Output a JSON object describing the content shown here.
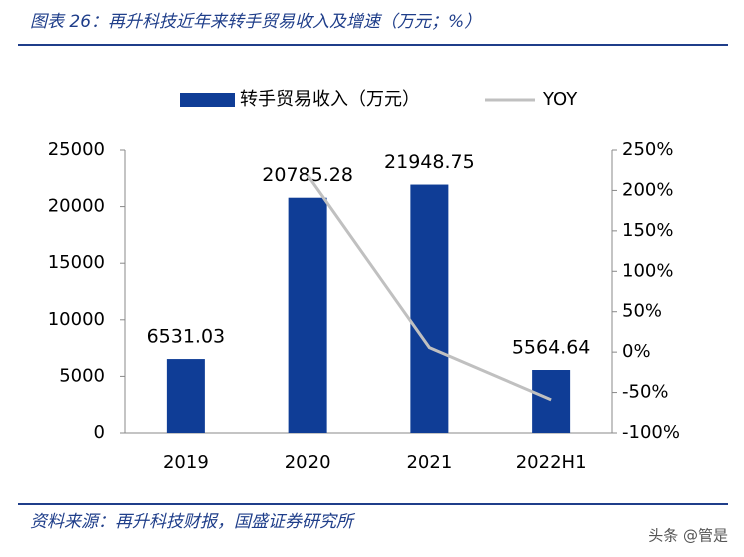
{
  "header": {
    "title": "图表 26：再升科技近年来转手贸易收入及增速（万元；%）"
  },
  "chart_data": {
    "type": "bar",
    "categories": [
      "2019",
      "2020",
      "2021",
      "2022H1"
    ],
    "series": [
      {
        "name": "转手贸易收入（万元）",
        "color": "#0f3d96",
        "type": "bar",
        "values": [
          6531.03,
          20785.28,
          21948.75,
          5564.64
        ]
      },
      {
        "name": "YOY",
        "color": "#c0c0c0",
        "type": "line",
        "axis": "y2",
        "values": [
          null,
          218.25,
          5.6,
          -59
        ]
      }
    ],
    "ylim": [
      0,
      25000
    ],
    "yticks": [
      0,
      5000,
      10000,
      15000,
      20000,
      25000
    ],
    "y2lim": [
      -100,
      250
    ],
    "y2ticks": [
      {
        "value": -100,
        "label": "-100%"
      },
      {
        "value": -50,
        "label": "-50%"
      },
      {
        "value": 0,
        "label": "0%"
      },
      {
        "value": 50,
        "label": "50%"
      },
      {
        "value": 100,
        "label": "100%"
      },
      {
        "value": 150,
        "label": "150%"
      },
      {
        "value": 200,
        "label": "200%"
      },
      {
        "value": 250,
        "label": "250%"
      }
    ],
    "legend": "top",
    "grid": false
  },
  "footer": {
    "source": "资料来源：再升科技财报，国盛证券研究所",
    "watermark": "头条 @管是"
  }
}
